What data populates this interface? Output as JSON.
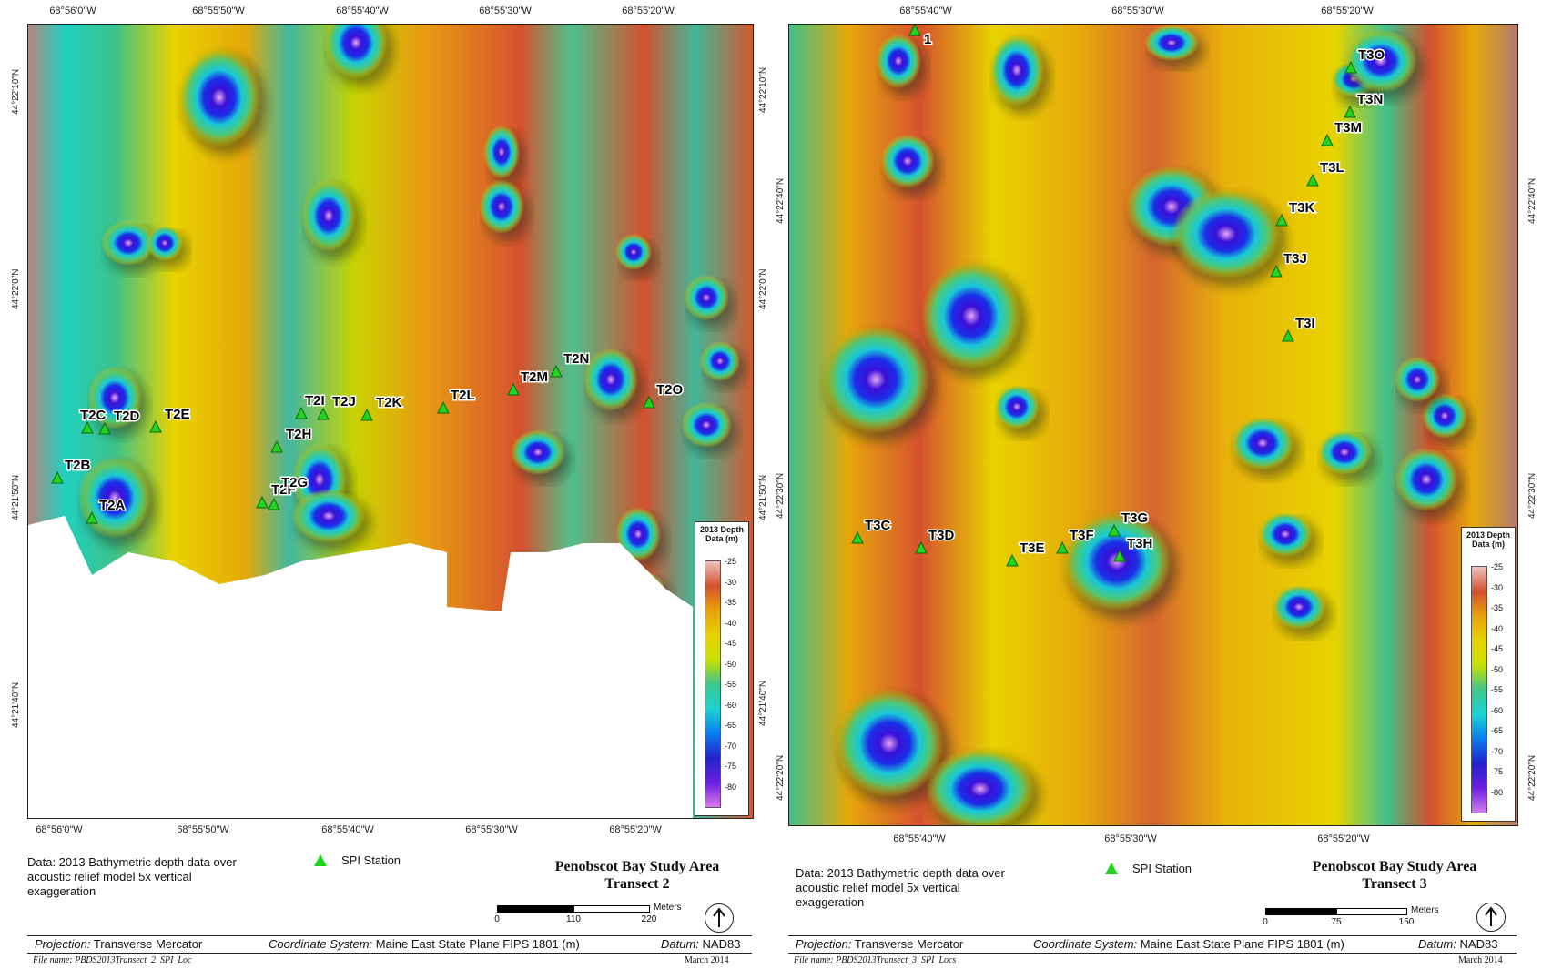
{
  "left": {
    "top_ticks": [
      "68°56'0\"W",
      "68°55'50\"W",
      "68°55'40\"W",
      "68°55'30\"W",
      "68°55'20\"W"
    ],
    "bottom_ticks": [
      "68°56'0\"W",
      "68°55'50\"W",
      "68°55'40\"W",
      "68°55'30\"W",
      "68°55'20\"W"
    ],
    "left_ticks": [
      "44°22'10\"N",
      "44°22'0\"N",
      "44°21'50\"N",
      "44°21'40\"N"
    ],
    "right_ticks": [
      "44°22'10\"N",
      "44°22'0\"N",
      "44°21'50\"N",
      "44°21'40\"N"
    ],
    "stations": [
      {
        "id": "T2A"
      },
      {
        "id": "T2B"
      },
      {
        "id": "T2C"
      },
      {
        "id": "T2D"
      },
      {
        "id": "T2E"
      },
      {
        "id": "T2F"
      },
      {
        "id": "T2G"
      },
      {
        "id": "T2H"
      },
      {
        "id": "T2I"
      },
      {
        "id": "T2J"
      },
      {
        "id": "T2K"
      },
      {
        "id": "T2L"
      },
      {
        "id": "T2M"
      },
      {
        "id": "T2N"
      },
      {
        "id": "T2O"
      }
    ],
    "caption": "Data: 2013 Bathymetric depth data over acoustic relief model 5x vertical exaggeration",
    "spi_label": "SPI Station",
    "title_line1": "Penobscot Bay Study Area",
    "title_line2": "Transect 2",
    "scale_unit": "Meters",
    "scale_labels": [
      "0",
      "110",
      "220"
    ],
    "projection_key": "Projection:",
    "projection_val": "Transverse Mercator",
    "coord_key": "Coordinate System:",
    "coord_val": "Maine East State Plane FIPS 1801 (m)",
    "datum_key": "Datum:",
    "datum_val": "NAD83",
    "file_name": "File name: PBDS2013Transect_2_SPI_Loc",
    "date": "March 2014"
  },
  "right": {
    "top_ticks": [
      "68°55'40\"W",
      "68°55'30\"W",
      "68°55'20\"W"
    ],
    "bottom_ticks": [
      "68°55'40\"W",
      "68°55'30\"W",
      "68°55'20\"W"
    ],
    "left_ticks": [
      "44°22'40\"N",
      "44°22'30\"N",
      "44°22'20\"N"
    ],
    "right_ticks": [
      "44°22'40\"N",
      "44°22'30\"N",
      "44°22'20\"N"
    ],
    "stations": [
      {
        "id": "1"
      },
      {
        "id": "T3C"
      },
      {
        "id": "T3D"
      },
      {
        "id": "T3E"
      },
      {
        "id": "T3F"
      },
      {
        "id": "T3G"
      },
      {
        "id": "T3H"
      },
      {
        "id": "T3I"
      },
      {
        "id": "T3J"
      },
      {
        "id": "T3K"
      },
      {
        "id": "T3L"
      },
      {
        "id": "T3M"
      },
      {
        "id": "T3N"
      },
      {
        "id": "T3O"
      }
    ],
    "caption": "Data: 2013 Bathymetric depth data over acoustic relief model 5x vertical exaggeration",
    "spi_label": "SPI Station",
    "title_line1": "Penobscot Bay Study Area",
    "title_line2": "Transect 3",
    "scale_unit": "Meters",
    "scale_labels": [
      "0",
      "75",
      "150"
    ],
    "projection_key": "Projection:",
    "projection_val": "Transverse Mercator",
    "coord_key": "Coordinate System:",
    "coord_val": "Maine East State Plane FIPS 1801 (m)",
    "datum_key": "Datum:",
    "datum_val": "NAD83",
    "file_name": "File name: PBDS2013Transect_3_SPI_Locs",
    "date": "March 2014"
  },
  "legend": {
    "title": "2013 Depth Data (m)",
    "values": [
      "-25",
      "-30",
      "-35",
      "-40",
      "-45",
      "-50",
      "-55",
      "-60",
      "-65",
      "-70",
      "-75",
      "-80"
    ]
  },
  "colors": {
    "station_marker": "#22d422",
    "ramp": [
      "#efc2c2",
      "#d4512e",
      "#e8a20a",
      "#e8d200",
      "#c8e000",
      "#3fc68a",
      "#19d4d4",
      "#0a7cf0",
      "#2222cc",
      "#6a1ee0",
      "#d47cf0"
    ]
  }
}
